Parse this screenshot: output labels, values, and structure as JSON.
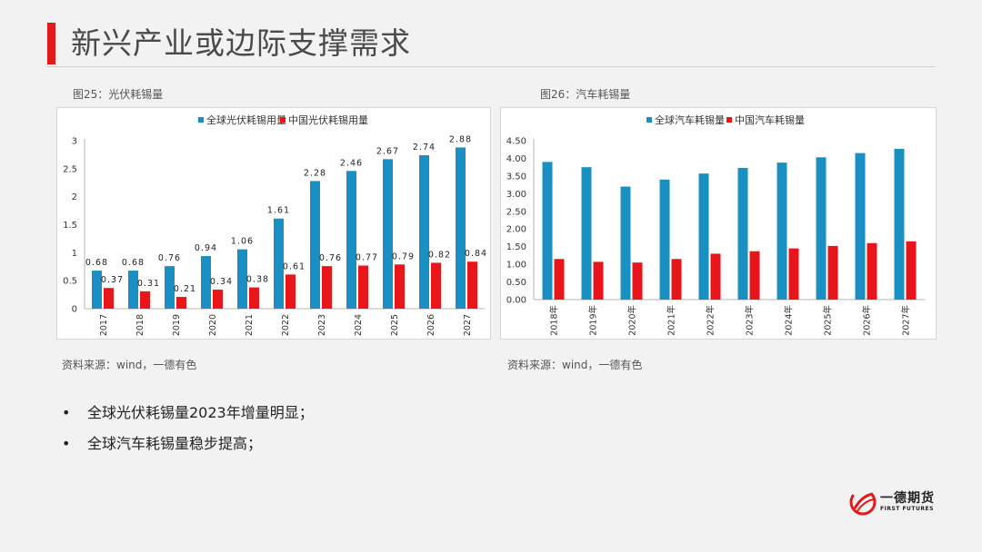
{
  "page": {
    "title": "新兴产业或边际支撑需求",
    "accent_color": "#e4191b"
  },
  "figures": [
    {
      "caption": "图25：光伏耗锡量",
      "source": "资料来源：wind，一德有色"
    },
    {
      "caption": "图26：汽车耗锡量",
      "source": "资料来源：wind，一德有色"
    }
  ],
  "bullets": [
    {
      "marker": "•",
      "text": "全球光伏耗锡量2023年增量明显；"
    },
    {
      "marker": "•",
      "text": "全球汽车耗锡量稳步提高；"
    }
  ],
  "logo": {
    "name": "一德期货",
    "subtitle": "FIRST FUTURES"
  },
  "chart_data": [
    {
      "type": "bar",
      "title": "",
      "xlabel": "",
      "ylabel": "",
      "categories": [
        "2017",
        "2018",
        "2019",
        "2020",
        "2021",
        "2022",
        "2023",
        "2024",
        "2025",
        "2026",
        "2027"
      ],
      "series": [
        {
          "name": "全球光伏耗锡用量",
          "color": "#1a8fc1",
          "values": [
            0.68,
            0.68,
            0.76,
            0.94,
            1.06,
            1.61,
            2.28,
            2.46,
            2.67,
            2.74,
            2.88
          ]
        },
        {
          "name": "中国光伏耗锡用量",
          "color": "#e8161b",
          "values": [
            0.37,
            0.31,
            0.21,
            0.34,
            0.38,
            0.61,
            0.76,
            0.77,
            0.79,
            0.82,
            0.84
          ]
        }
      ],
      "ylim": [
        0,
        3
      ],
      "yticks": [
        0,
        0.5,
        1,
        1.5,
        2,
        2.5,
        3
      ],
      "ytick_labels": [
        "0",
        "0.5",
        "1",
        "1.5",
        "2",
        "2.5",
        "3"
      ],
      "data_labels": true,
      "grid": false,
      "legend": "top"
    },
    {
      "type": "bar",
      "title": "",
      "xlabel": "",
      "ylabel": "",
      "categories": [
        "2018年",
        "2019年",
        "2020年",
        "2021年",
        "2022年",
        "2023年",
        "2024年",
        "2025年",
        "2026年",
        "2027年"
      ],
      "series": [
        {
          "name": "全球汽车耗锡量",
          "color": "#1a8fc1",
          "values": [
            3.9,
            3.75,
            3.2,
            3.4,
            3.57,
            3.73,
            3.88,
            4.03,
            4.15,
            4.27
          ]
        },
        {
          "name": "中国汽车耗锡量",
          "color": "#e8161b",
          "values": [
            1.15,
            1.07,
            1.05,
            1.15,
            1.3,
            1.37,
            1.45,
            1.52,
            1.6,
            1.65
          ]
        }
      ],
      "ylim": [
        0,
        4.5
      ],
      "yticks": [
        0,
        0.5,
        1,
        1.5,
        2,
        2.5,
        3,
        3.5,
        4,
        4.5
      ],
      "ytick_labels": [
        "0.00",
        "0.50",
        "1.00",
        "1.50",
        "2.00",
        "2.50",
        "3.00",
        "3.50",
        "4.00",
        "4.50"
      ],
      "data_labels": false,
      "grid": false,
      "legend": "top"
    }
  ]
}
